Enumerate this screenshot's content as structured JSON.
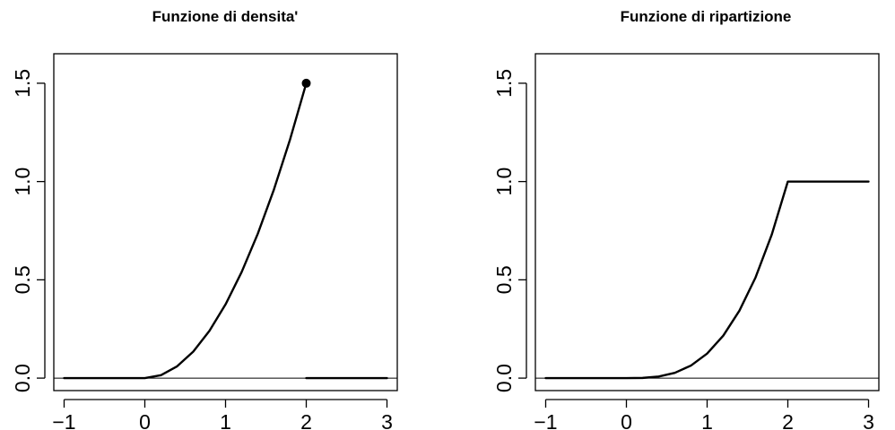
{
  "chart_data": [
    {
      "type": "line",
      "title": "Funzione di densita'",
      "xlabel": "",
      "ylabel": "",
      "xlim": [
        -1,
        3
      ],
      "ylim": [
        0,
        1.65
      ],
      "xticks": [
        -1,
        0,
        1,
        2,
        3
      ],
      "xtick_labels": [
        "−1",
        "0",
        "1",
        "2",
        "3"
      ],
      "yticks": [
        0,
        0.5,
        1,
        1.5
      ],
      "ytick_labels": [
        "0.0",
        "0.5",
        "1.0",
        "1.5"
      ],
      "reference_line_y": 0,
      "grid": false,
      "series": [
        {
          "x": [
            -1,
            -0.5,
            0,
            0.2,
            0.4,
            0.6,
            0.8,
            1.0,
            1.2,
            1.4,
            1.6,
            1.8,
            2.0
          ],
          "y": [
            0,
            0,
            0,
            0.015,
            0.06,
            0.135,
            0.24,
            0.375,
            0.54,
            0.735,
            0.96,
            1.215,
            1.5
          ]
        },
        {
          "x": [
            2,
            3
          ],
          "y": [
            0,
            0
          ]
        }
      ],
      "points": [
        {
          "x": 2,
          "y": 1.5
        }
      ]
    },
    {
      "type": "line",
      "title": "Funzione di ripartizione",
      "xlabel": "",
      "ylabel": "",
      "xlim": [
        -1,
        3
      ],
      "ylim": [
        0,
        1.65
      ],
      "xticks": [
        -1,
        0,
        1,
        2,
        3
      ],
      "xtick_labels": [
        "−1",
        "0",
        "1",
        "2",
        "3"
      ],
      "yticks": [
        0,
        0.5,
        1,
        1.5
      ],
      "ytick_labels": [
        "0.0",
        "0.5",
        "1.0",
        "1.5"
      ],
      "reference_line_y": 0,
      "grid": false,
      "series": [
        {
          "x": [
            -1,
            -0.5,
            0,
            0.2,
            0.4,
            0.6,
            0.8,
            1.0,
            1.2,
            1.4,
            1.6,
            1.8,
            2.0,
            2.5,
            3.0
          ],
          "y": [
            0,
            0,
            0,
            0.001,
            0.008,
            0.027,
            0.064,
            0.125,
            0.216,
            0.343,
            0.512,
            0.729,
            1.0,
            1.0,
            1.0
          ]
        }
      ],
      "points": []
    }
  ]
}
